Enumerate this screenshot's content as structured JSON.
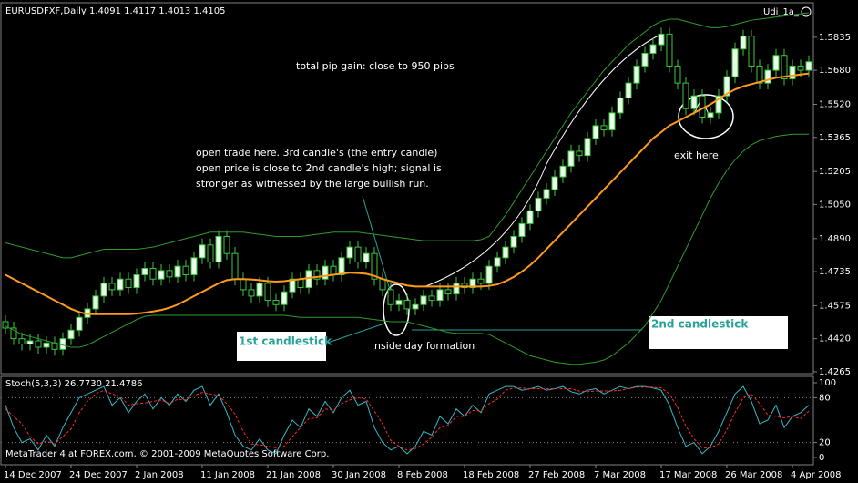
{
  "chart_data": [
    {
      "type": "candlestick",
      "title": "EURUSDFXF,Daily  1.4091 1.4117 1.4013 1.4105",
      "template_label": "Udi_1a_",
      "copyright": "MetaTrader 4 at FOREX.com, © 2001-2009 MetaQuotes Software Corp.",
      "annotations": {
        "pip_gain": "total pip gain: close to 950 pips",
        "entry_note": [
          "open trade here. 3rd candle's (the entry candle)",
          "open price is close to 2nd candle's high; signal is",
          "stronger as witnessed by the large bullish run."
        ],
        "exit": "exit here",
        "inside_day": "inside day formation",
        "first_candle": "1st candlestick",
        "second_candle": "2nd candlestick"
      },
      "categories": [
        "14 Dec 2007",
        null,
        null,
        null,
        null,
        null,
        null,
        null,
        "24 Dec 2007",
        null,
        null,
        null,
        null,
        null,
        null,
        null,
        "2 Jan 2008",
        null,
        null,
        null,
        null,
        null,
        null,
        null,
        "11 Jan 2008",
        null,
        null,
        null,
        null,
        null,
        null,
        null,
        "21 Jan 2008",
        null,
        null,
        null,
        null,
        null,
        null,
        null,
        "30 Jan 2008",
        null,
        null,
        null,
        null,
        null,
        null,
        null,
        "8 Feb 2008",
        null,
        null,
        null,
        null,
        null,
        null,
        null,
        "18 Feb 2008",
        null,
        null,
        null,
        null,
        null,
        null,
        null,
        "27 Feb 2008",
        null,
        null,
        null,
        null,
        null,
        null,
        null,
        "7 Mar 2008",
        null,
        null,
        null,
        null,
        null,
        null,
        null,
        "17 Mar 2008",
        null,
        null,
        null,
        null,
        null,
        null,
        null,
        "26 Mar 2008",
        null,
        null,
        null,
        null,
        null,
        null,
        null,
        "4 Apr 2008",
        null,
        null
      ],
      "open": [
        1.45,
        1.447,
        1.442,
        1.4395,
        1.441,
        1.438,
        1.44,
        1.437,
        1.442,
        1.446,
        1.452,
        1.456,
        1.462,
        1.468,
        1.465,
        1.47,
        1.466,
        1.472,
        1.475,
        1.47,
        1.474,
        1.471,
        1.476,
        1.472,
        1.48,
        1.486,
        1.478,
        1.49,
        1.482,
        1.47,
        1.465,
        1.462,
        1.468,
        1.46,
        1.458,
        1.464,
        1.47,
        1.466,
        1.474,
        1.47,
        1.476,
        1.472,
        1.48,
        1.485,
        1.478,
        1.482,
        1.47,
        1.465,
        1.458,
        1.46,
        1.456,
        1.458,
        1.462,
        1.46,
        1.465,
        1.463,
        1.468,
        1.466,
        1.47,
        1.468,
        1.476,
        1.48,
        1.485,
        1.49,
        1.496,
        1.502,
        1.508,
        1.512,
        1.518,
        1.523,
        1.53,
        1.528,
        1.536,
        1.542,
        1.54,
        1.548,
        1.555,
        1.562,
        1.57,
        1.576,
        1.58,
        1.585,
        1.57,
        1.562,
        1.55,
        1.556,
        1.546,
        1.548,
        1.556,
        1.565,
        1.578,
        1.584,
        1.57,
        1.562,
        1.568,
        1.575,
        1.564,
        1.57,
        1.568
      ],
      "high": [
        1.453,
        1.45,
        1.445,
        1.444,
        1.444,
        1.443,
        1.443,
        1.445,
        1.449,
        1.455,
        1.459,
        1.465,
        1.471,
        1.471,
        1.473,
        1.473,
        1.475,
        1.478,
        1.478,
        1.477,
        1.477,
        1.479,
        1.479,
        1.483,
        1.489,
        1.489,
        1.493,
        1.493,
        1.485,
        1.473,
        1.468,
        1.471,
        1.471,
        1.463,
        1.467,
        1.473,
        1.473,
        1.477,
        1.477,
        1.479,
        1.479,
        1.483,
        1.488,
        1.488,
        1.485,
        1.485,
        1.473,
        1.468,
        1.463,
        1.463,
        1.461,
        1.465,
        1.465,
        1.468,
        1.468,
        1.471,
        1.471,
        1.473,
        1.473,
        1.479,
        1.483,
        1.488,
        1.493,
        1.499,
        1.505,
        1.511,
        1.515,
        1.521,
        1.526,
        1.533,
        1.533,
        1.539,
        1.545,
        1.545,
        1.551,
        1.558,
        1.565,
        1.573,
        1.579,
        1.583,
        1.588,
        1.588,
        1.573,
        1.565,
        1.559,
        1.559,
        1.551,
        1.559,
        1.568,
        1.581,
        1.587,
        1.587,
        1.573,
        1.571,
        1.578,
        1.578,
        1.573,
        1.573,
        1.575
      ],
      "low": [
        1.444,
        1.439,
        1.4365,
        1.4365,
        1.435,
        1.435,
        1.434,
        1.434,
        1.439,
        1.443,
        1.449,
        1.453,
        1.459,
        1.462,
        1.462,
        1.463,
        1.463,
        1.469,
        1.467,
        1.467,
        1.468,
        1.468,
        1.469,
        1.469,
        1.477,
        1.475,
        1.475,
        1.479,
        1.467,
        1.462,
        1.459,
        1.459,
        1.457,
        1.455,
        1.455,
        1.461,
        1.463,
        1.463,
        1.467,
        1.467,
        1.469,
        1.469,
        1.477,
        1.475,
        1.475,
        1.467,
        1.462,
        1.455,
        1.455,
        1.453,
        1.453,
        1.455,
        1.457,
        1.457,
        1.46,
        1.46,
        1.463,
        1.463,
        1.465,
        1.465,
        1.473,
        1.477,
        1.482,
        1.487,
        1.493,
        1.499,
        1.505,
        1.509,
        1.515,
        1.52,
        1.525,
        1.525,
        1.533,
        1.537,
        1.537,
        1.545,
        1.552,
        1.559,
        1.567,
        1.573,
        1.577,
        1.567,
        1.559,
        1.547,
        1.547,
        1.543,
        1.543,
        1.545,
        1.553,
        1.562,
        1.575,
        1.567,
        1.559,
        1.559,
        1.565,
        1.561,
        1.561,
        1.565,
        1.565
      ],
      "close": [
        1.447,
        1.442,
        1.4395,
        1.441,
        1.438,
        1.44,
        1.437,
        1.442,
        1.446,
        1.452,
        1.456,
        1.462,
        1.468,
        1.465,
        1.47,
        1.466,
        1.472,
        1.475,
        1.47,
        1.474,
        1.471,
        1.476,
        1.472,
        1.48,
        1.486,
        1.478,
        1.49,
        1.482,
        1.47,
        1.465,
        1.462,
        1.468,
        1.46,
        1.458,
        1.464,
        1.47,
        1.466,
        1.474,
        1.47,
        1.476,
        1.472,
        1.48,
        1.485,
        1.478,
        1.482,
        1.47,
        1.465,
        1.458,
        1.46,
        1.456,
        1.458,
        1.462,
        1.46,
        1.465,
        1.463,
        1.468,
        1.466,
        1.47,
        1.468,
        1.476,
        1.48,
        1.485,
        1.49,
        1.496,
        1.502,
        1.508,
        1.512,
        1.518,
        1.523,
        1.53,
        1.528,
        1.536,
        1.542,
        1.54,
        1.548,
        1.555,
        1.562,
        1.57,
        1.576,
        1.58,
        1.585,
        1.57,
        1.562,
        1.55,
        1.556,
        1.546,
        1.548,
        1.556,
        1.565,
        1.578,
        1.584,
        1.57,
        1.562,
        1.568,
        1.575,
        1.564,
        1.57,
        1.568,
        1.572
      ],
      "up_color": "#e8ffe8",
      "down_color": "#000000",
      "wick_color": "#3cc83c",
      "overlays": [
        {
          "color": "#ff9a1a",
          "width": 2,
          "values": [
            1.472,
            1.47,
            1.468,
            1.466,
            1.464,
            1.462,
            1.46,
            1.458,
            1.456,
            1.4545,
            1.4535,
            1.4535,
            1.4535,
            1.4535,
            1.4535,
            1.4535,
            1.4538,
            1.4542,
            1.4548,
            1.4555,
            1.4565,
            1.458,
            1.46,
            1.462,
            1.464,
            1.466,
            1.468,
            1.4695,
            1.47,
            1.47,
            1.4698,
            1.4695,
            1.469,
            1.4688,
            1.469,
            1.4695,
            1.47,
            1.4705,
            1.471,
            1.4715,
            1.472,
            1.4725,
            1.473,
            1.4728,
            1.4725,
            1.4715,
            1.47,
            1.469,
            1.468,
            1.467,
            1.4665,
            1.4665,
            1.4665,
            1.4665,
            1.4665,
            1.4665,
            1.4665,
            1.4665,
            1.4665,
            1.4668,
            1.4675,
            1.469,
            1.471,
            1.4735,
            1.4765,
            1.48,
            1.484,
            1.488,
            1.492,
            1.496,
            1.5,
            1.504,
            1.508,
            1.512,
            1.516,
            1.52,
            1.524,
            1.528,
            1.532,
            1.536,
            1.539,
            1.542,
            1.544,
            1.546,
            1.548,
            1.55,
            1.552,
            1.5545,
            1.557,
            1.559,
            1.5605,
            1.5615,
            1.5625,
            1.5635,
            1.5645,
            1.565,
            1.5655,
            1.566,
            1.5665
          ]
        },
        {
          "color": "#2e9b2e",
          "width": 1,
          "values": [
            1.487,
            1.486,
            1.485,
            1.484,
            1.483,
            1.482,
            1.481,
            1.48,
            1.48,
            1.481,
            1.482,
            1.483,
            1.484,
            1.484,
            1.484,
            1.484,
            1.484,
            1.4845,
            1.485,
            1.486,
            1.487,
            1.488,
            1.489,
            1.49,
            1.491,
            1.492,
            1.492,
            1.492,
            1.492,
            1.492,
            1.4915,
            1.491,
            1.4905,
            1.49,
            1.49,
            1.49,
            1.49,
            1.4905,
            1.491,
            1.4915,
            1.492,
            1.492,
            1.492,
            1.492,
            1.4915,
            1.491,
            1.4905,
            1.49,
            1.4895,
            1.489,
            1.4885,
            1.488,
            1.488,
            1.488,
            1.488,
            1.488,
            1.488,
            1.488,
            1.4885,
            1.49,
            1.495,
            1.5,
            1.506,
            1.512,
            1.518,
            1.524,
            1.53,
            1.536,
            1.542,
            1.548,
            1.553,
            1.558,
            1.563,
            1.568,
            1.572,
            1.576,
            1.58,
            1.583,
            1.586,
            1.589,
            1.591,
            1.592,
            1.592,
            1.591,
            1.59,
            1.589,
            1.588,
            1.588,
            1.5885,
            1.5895,
            1.5905,
            1.5915,
            1.592,
            1.5925,
            1.593,
            1.5935,
            1.594,
            1.5945,
            1.595
          ]
        },
        {
          "color": "#2e9b2e",
          "width": 1,
          "values": [
            1.448,
            1.446,
            1.444,
            1.443,
            1.442,
            1.441,
            1.44,
            1.439,
            1.438,
            1.438,
            1.439,
            1.441,
            1.443,
            1.445,
            1.447,
            1.449,
            1.451,
            1.4525,
            1.453,
            1.453,
            1.453,
            1.453,
            1.453,
            1.453,
            1.453,
            1.453,
            1.453,
            1.453,
            1.453,
            1.453,
            1.453,
            1.453,
            1.453,
            1.453,
            1.453,
            1.4525,
            1.452,
            1.452,
            1.452,
            1.452,
            1.452,
            1.452,
            1.452,
            1.452,
            1.4515,
            1.451,
            1.4505,
            1.45,
            1.45,
            1.45,
            1.449,
            1.448,
            1.447,
            1.446,
            1.445,
            1.4445,
            1.4445,
            1.4445,
            1.4445,
            1.444,
            1.442,
            1.44,
            1.438,
            1.436,
            1.434,
            1.433,
            1.432,
            1.431,
            1.4305,
            1.43,
            1.43,
            1.4305,
            1.431,
            1.432,
            1.434,
            1.437,
            1.44,
            1.444,
            1.448,
            1.454,
            1.46,
            1.468,
            1.476,
            1.484,
            1.492,
            1.5,
            1.508,
            1.515,
            1.521,
            1.526,
            1.53,
            1.533,
            1.535,
            1.536,
            1.537,
            1.5375,
            1.538,
            1.538,
            1.538
          ]
        }
      ],
      "ylim": [
        1.4256,
        1.595
      ],
      "yticks": [
        1.5835,
        {
          "value": 1.568,
          "label": "1.5680"
        },
        {
          "value": 1.552,
          "label": "1.5520"
        },
        1.5365,
        1.5205,
        {
          "value": 1.505,
          "label": "1.5050"
        },
        {
          "value": 1.489,
          "label": "1.4890"
        },
        1.4735,
        1.4575,
        {
          "value": 1.442,
          "label": "1.4420"
        },
        1.4265
      ],
      "grid": false
    },
    {
      "type": "line",
      "title": "Stoch(5,3,3) 26.7730 21.4786",
      "series": [
        {
          "color": "#37b8c8",
          "dashed": false,
          "values": [
            70,
            40,
            20,
            25,
            10,
            30,
            15,
            40,
            60,
            80,
            85,
            90,
            95,
            70,
            80,
            60,
            75,
            85,
            65,
            80,
            70,
            85,
            75,
            90,
            95,
            70,
            85,
            60,
            30,
            15,
            10,
            25,
            10,
            5,
            30,
            50,
            40,
            65,
            55,
            75,
            60,
            80,
            90,
            70,
            75,
            40,
            20,
            10,
            15,
            5,
            15,
            35,
            30,
            55,
            45,
            65,
            55,
            70,
            60,
            85,
            90,
            95,
            95,
            90,
            92,
            95,
            90,
            92,
            95,
            88,
            85,
            90,
            92,
            85,
            90,
            95,
            92,
            95,
            95,
            93,
            90,
            70,
            40,
            15,
            20,
            5,
            15,
            35,
            60,
            85,
            95,
            75,
            45,
            50,
            70,
            40,
            55,
            60,
            70
          ]
        },
        {
          "color": "#ff2a2a",
          "dashed": true,
          "values": [
            65,
            55,
            45,
            28,
            18,
            22,
            18,
            28,
            38,
            60,
            75,
            85,
            90,
            85,
            82,
            70,
            72,
            73,
            75,
            77,
            72,
            78,
            77,
            83,
            87,
            85,
            83,
            72,
            58,
            35,
            18,
            17,
            15,
            13,
            15,
            28,
            40,
            52,
            53,
            65,
            63,
            72,
            77,
            80,
            78,
            62,
            45,
            23,
            15,
            10,
            12,
            18,
            27,
            40,
            43,
            55,
            55,
            63,
            62,
            72,
            78,
            90,
            93,
            93,
            92,
            92,
            92,
            92,
            92,
            92,
            89,
            88,
            89,
            89,
            89,
            90,
            92,
            94,
            94,
            94,
            93,
            85,
            67,
            42,
            25,
            13,
            13,
            18,
            37,
            60,
            80,
            85,
            72,
            57,
            55,
            53,
            55,
            52,
            62
          ]
        }
      ],
      "ylim": [
        0,
        100
      ],
      "yticks": [
        100,
        80,
        20,
        0
      ],
      "levels_dotted": true
    }
  ]
}
